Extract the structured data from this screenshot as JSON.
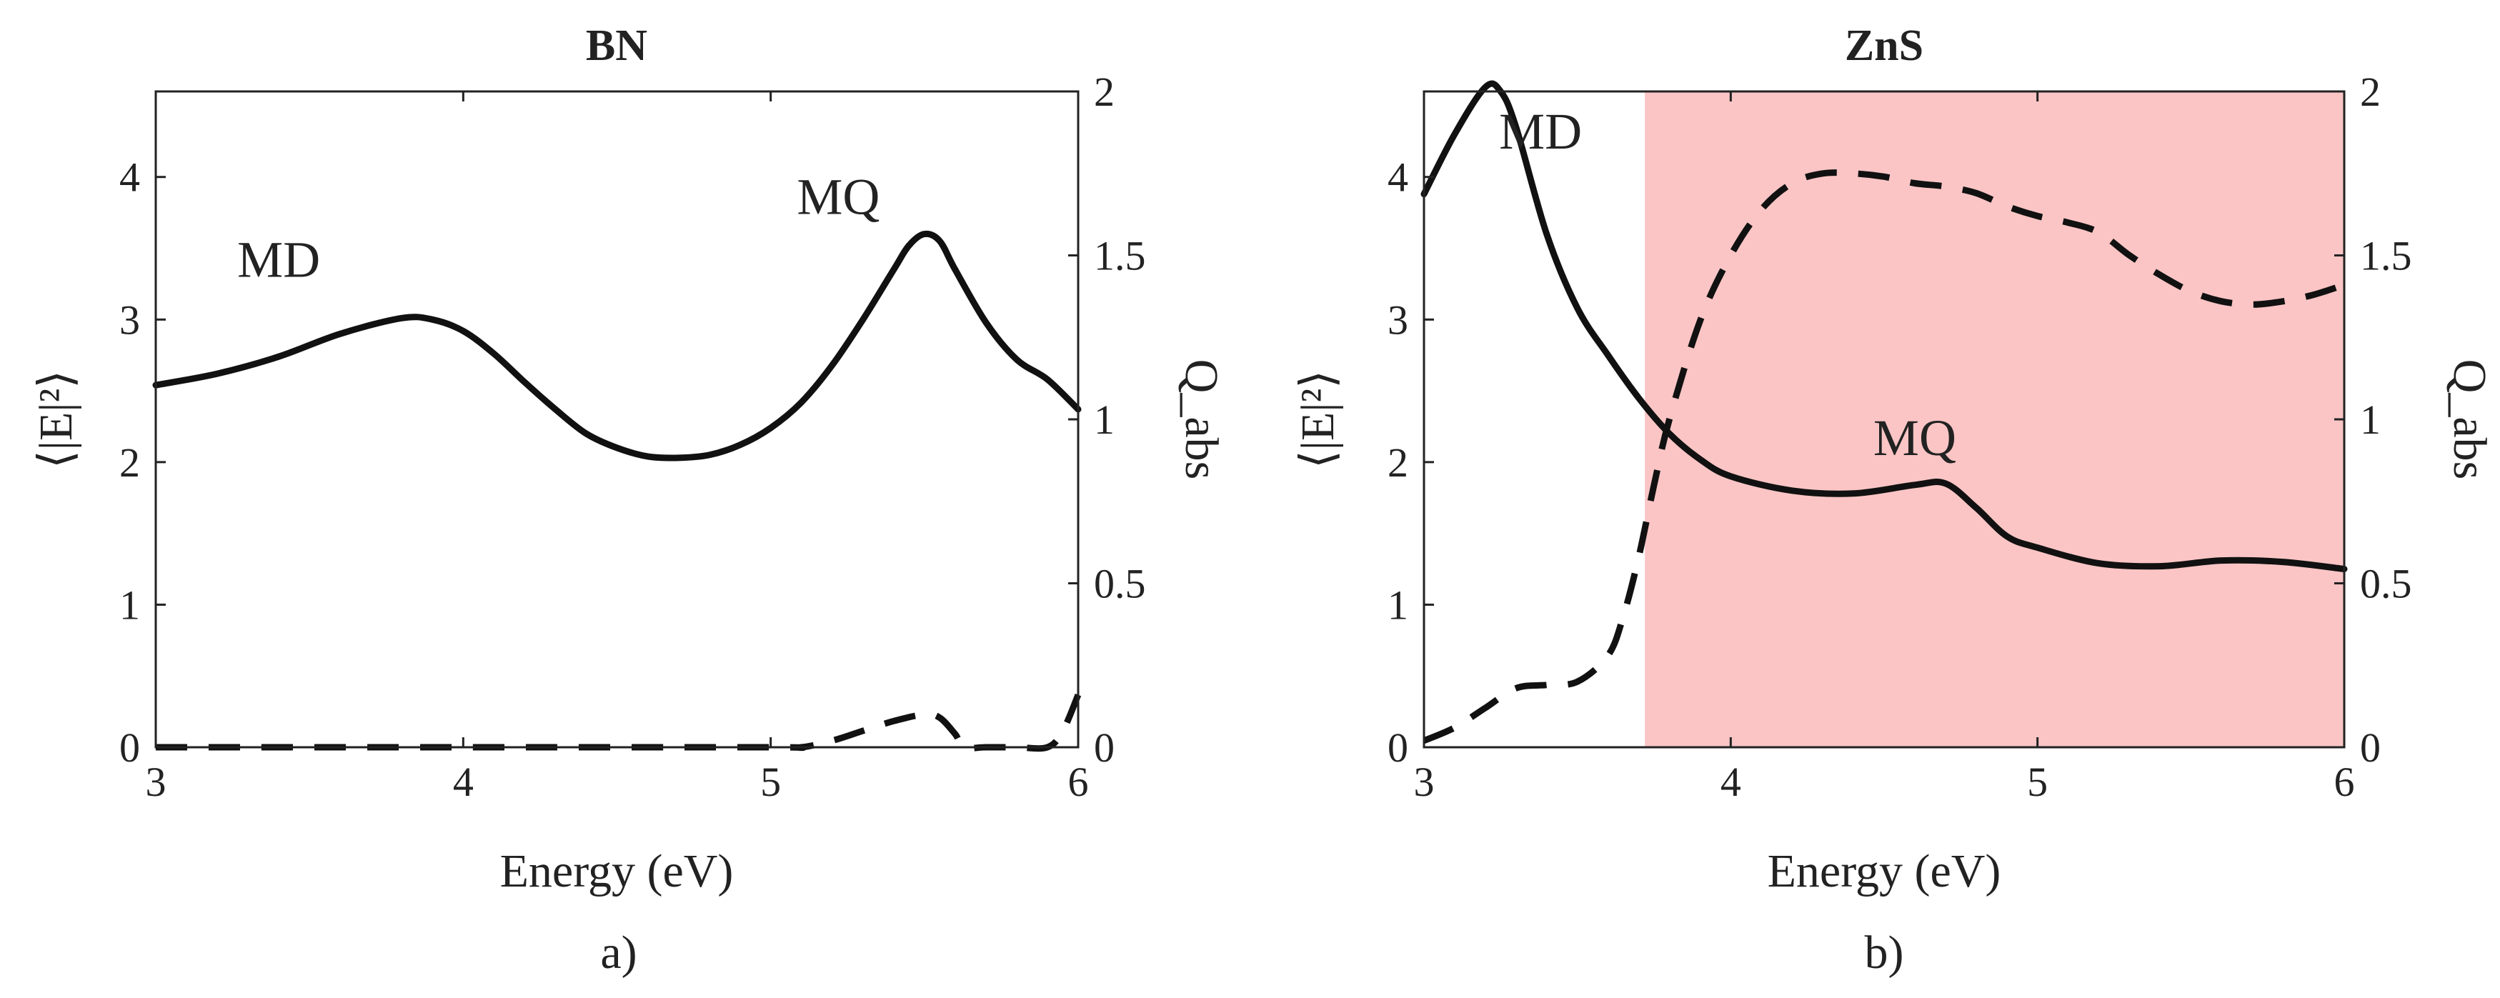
{
  "chart_data": [
    {
      "type": "line",
      "panel": "a)",
      "title": "BN",
      "xlabel": "Energy (eV)",
      "ylabel": "⟨|E|²⟩",
      "ylabel_right": "Q_abs",
      "xlim": [
        3,
        6
      ],
      "ylim": [
        0,
        4.6
      ],
      "ylim_right": [
        0,
        2
      ],
      "xticks": [
        "3",
        "4",
        "5",
        "6"
      ],
      "yticks": [
        "0",
        "1",
        "2",
        "3",
        "4"
      ],
      "yticks_right": [
        "0",
        "0.5",
        "1",
        "1.5",
        "2"
      ],
      "highlight": null,
      "series": [
        {
          "name": "⟨|E|²⟩",
          "axis": "left",
          "style": "solid",
          "x": [
            3.0,
            3.2,
            3.4,
            3.6,
            3.8,
            3.9,
            4.0,
            4.1,
            4.2,
            4.3,
            4.4,
            4.5,
            4.6,
            4.7,
            4.8,
            4.9,
            5.0,
            5.1,
            5.2,
            5.3,
            5.4,
            5.45,
            5.5,
            5.55,
            5.6,
            5.7,
            5.8,
            5.9,
            6.0
          ],
          "y": [
            2.54,
            2.62,
            2.74,
            2.9,
            3.01,
            3.0,
            2.92,
            2.76,
            2.56,
            2.37,
            2.2,
            2.1,
            2.04,
            2.03,
            2.05,
            2.12,
            2.24,
            2.42,
            2.68,
            3.0,
            3.35,
            3.52,
            3.6,
            3.55,
            3.35,
            2.98,
            2.72,
            2.58,
            2.37
          ]
        },
        {
          "name": "Q_abs",
          "axis": "right",
          "style": "dashed",
          "x": [
            3.0,
            4.0,
            5.0,
            5.1,
            5.2,
            5.3,
            5.4,
            5.5,
            5.55,
            5.6,
            5.63,
            5.7,
            5.8,
            5.9,
            5.95,
            6.0
          ],
          "y": [
            0.0,
            0.0,
            0.0,
            0.0,
            0.02,
            0.05,
            0.08,
            0.1,
            0.09,
            0.04,
            0.0,
            0.0,
            0.0,
            0.0,
            0.05,
            0.16
          ]
        }
      ],
      "annotations": [
        {
          "text": "MD",
          "x": 3.4,
          "y": 3.3
        },
        {
          "text": "MQ",
          "x": 5.22,
          "y": 3.74
        }
      ]
    },
    {
      "type": "line",
      "panel": "b)",
      "title": "ZnS",
      "xlabel": "Energy (eV)",
      "ylabel": "⟨|E|²⟩",
      "ylabel_right": "Q_abs",
      "xlim": [
        3,
        6
      ],
      "ylim": [
        0,
        4.6
      ],
      "ylim_right": [
        0,
        2
      ],
      "xticks": [
        "3",
        "4",
        "5",
        "6"
      ],
      "yticks": [
        "0",
        "1",
        "2",
        "3",
        "4"
      ],
      "yticks_right": [
        "0",
        "0.5",
        "1",
        "1.5",
        "2"
      ],
      "highlight": {
        "x_start": 3.72,
        "x_end": 6.0,
        "color": "#fbc5c5"
      },
      "series": [
        {
          "name": "⟨|E|²⟩",
          "axis": "left",
          "style": "solid",
          "x": [
            3.0,
            3.1,
            3.2,
            3.25,
            3.3,
            3.4,
            3.5,
            3.6,
            3.7,
            3.8,
            3.9,
            4.0,
            4.2,
            4.4,
            4.6,
            4.7,
            4.8,
            4.9,
            5.0,
            5.2,
            5.4,
            5.6,
            5.8,
            6.0
          ],
          "y": [
            3.88,
            4.3,
            4.63,
            4.6,
            4.35,
            3.6,
            3.08,
            2.75,
            2.45,
            2.2,
            2.02,
            1.9,
            1.8,
            1.78,
            1.84,
            1.85,
            1.68,
            1.48,
            1.4,
            1.29,
            1.27,
            1.31,
            1.3,
            1.25
          ]
        },
        {
          "name": "Q_abs",
          "axis": "right",
          "style": "dashed",
          "x": [
            3.0,
            3.1,
            3.2,
            3.3,
            3.4,
            3.5,
            3.6,
            3.65,
            3.7,
            3.75,
            3.8,
            3.9,
            4.0,
            4.1,
            4.2,
            4.3,
            4.4,
            4.5,
            4.6,
            4.7,
            4.8,
            4.9,
            5.0,
            5.1,
            5.2,
            5.3,
            5.4,
            5.5,
            5.6,
            5.7,
            5.8,
            5.9,
            6.0
          ],
          "y": [
            0.02,
            0.06,
            0.12,
            0.18,
            0.19,
            0.2,
            0.28,
            0.4,
            0.58,
            0.8,
            1.0,
            1.3,
            1.5,
            1.64,
            1.72,
            1.75,
            1.75,
            1.74,
            1.72,
            1.71,
            1.69,
            1.65,
            1.62,
            1.6,
            1.57,
            1.5,
            1.44,
            1.39,
            1.36,
            1.35,
            1.36,
            1.38,
            1.41
          ]
        }
      ],
      "annotations": [
        {
          "text": "MD",
          "x": 3.38,
          "y": 4.2
        },
        {
          "text": "MQ",
          "x": 4.6,
          "y": 2.05
        }
      ]
    }
  ]
}
